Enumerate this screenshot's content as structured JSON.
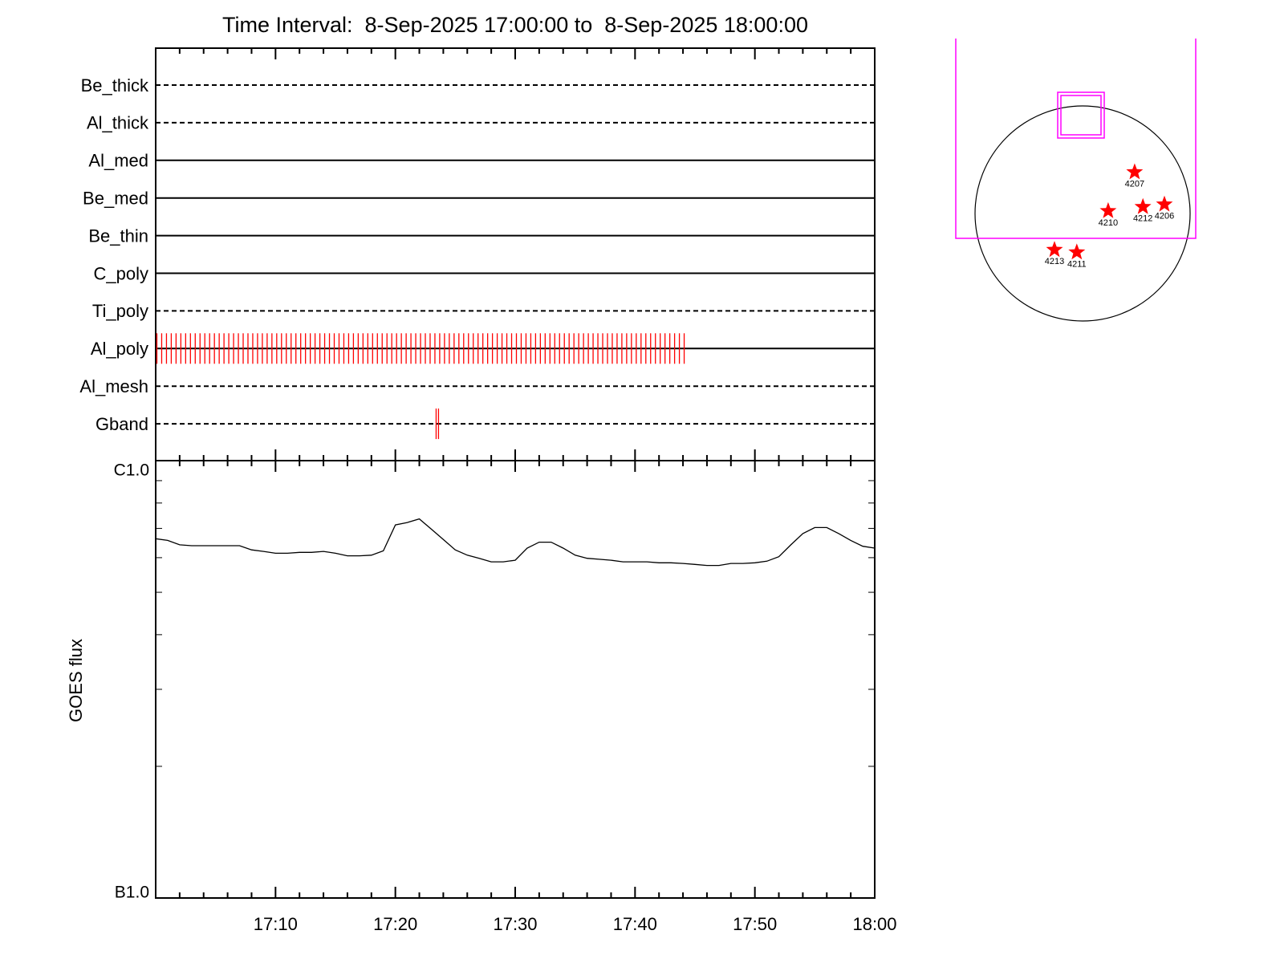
{
  "chart_data": [
    {
      "type": "timeline",
      "title": "Time Interval:  8-Sep-2025 17:00:00 to  8-Sep-2025 18:00:00",
      "categories": [
        "Be_thick",
        "Al_thick",
        "Al_med",
        "Be_med",
        "Be_thin",
        "C_poly",
        "Ti_poly",
        "Al_poly",
        "Al_mesh",
        "Gband"
      ],
      "line_styles": [
        "dashed",
        "dashed",
        "solid",
        "solid",
        "solid",
        "solid",
        "dashed",
        "solid",
        "dashed",
        "dashed"
      ],
      "color": "#ff0000",
      "exposures": [
        [],
        [],
        [],
        [],
        [],
        [],
        [],
        [
          0.1,
          0.5,
          0.9,
          1.3,
          1.7,
          2.1,
          2.5,
          2.9,
          3.3,
          3.7,
          4.1,
          4.5,
          4.9,
          5.3,
          5.7,
          6.1,
          6.5,
          6.9,
          7.3,
          7.7,
          8.1,
          8.5,
          8.9,
          9.3,
          9.7,
          10.1,
          10.5,
          10.9,
          11.3,
          11.7,
          12.1,
          12.5,
          12.9,
          13.3,
          13.7,
          14.1,
          14.5,
          14.9,
          15.3,
          15.7,
          16.1,
          16.5,
          16.9,
          17.3,
          17.7,
          18.1,
          18.5,
          18.9,
          19.3,
          19.7,
          20.1,
          20.5,
          20.9,
          21.3,
          21.7,
          22.1,
          22.5,
          22.9,
          23.3,
          23.7,
          24.1,
          24.5,
          24.9,
          25.3,
          25.7,
          26.1,
          26.5,
          26.9,
          27.3,
          27.7,
          28.1,
          28.5,
          28.9,
          29.3,
          29.7,
          30.1,
          30.5,
          30.9,
          31.3,
          31.7,
          32.1,
          32.5,
          32.9,
          33.3,
          33.7,
          34.1,
          34.5,
          34.9,
          35.3,
          35.7,
          36.1,
          36.5,
          36.9,
          37.3,
          37.7,
          38.1,
          38.5,
          38.9,
          39.3,
          39.7,
          40.1,
          40.5,
          40.9,
          41.3,
          41.7,
          42.1,
          42.5,
          42.9,
          43.3,
          43.7,
          44.1
        ],
        [],
        [
          23.4,
          23.6
        ]
      ]
    },
    {
      "type": "line",
      "ylabel": "GOES flux",
      "log_y": true,
      "color": "#000000",
      "xlim": [
        0,
        60
      ],
      "xticks": [
        {
          "value": 10,
          "label": "17:10"
        },
        {
          "value": 20,
          "label": "17:20"
        },
        {
          "value": 30,
          "label": "17:30"
        },
        {
          "value": 40,
          "label": "17:40"
        },
        {
          "value": 50,
          "label": "17:50"
        },
        {
          "value": 60,
          "label": "18:00"
        }
      ],
      "xminorticks": [
        2,
        4,
        6,
        8,
        12,
        14,
        16,
        18,
        22,
        24,
        26,
        28,
        32,
        34,
        36,
        38,
        42,
        44,
        46,
        48,
        52,
        54,
        56,
        58
      ],
      "ylim": [
        1e-07,
        1e-06
      ],
      "yticks": [
        {
          "value": 1e-07,
          "label": "B1.0"
        },
        {
          "value": 1e-06,
          "label": "C1.0"
        }
      ],
      "yminorticks": [
        2e-07,
        3e-07,
        4e-07,
        5e-07,
        6e-07,
        7e-07,
        8e-07,
        9e-07
      ],
      "x": [
        0,
        1,
        2,
        3,
        4,
        5,
        6,
        7,
        8,
        9,
        10,
        11,
        12,
        13,
        14,
        15,
        16,
        17,
        18,
        19,
        20,
        21,
        22,
        23,
        24,
        25,
        26,
        27,
        28,
        29,
        30,
        31,
        32,
        33,
        34,
        35,
        36,
        37,
        38,
        39,
        40,
        41,
        42,
        43,
        44,
        45,
        46,
        47,
        48,
        49,
        50,
        51,
        52,
        53,
        54,
        55,
        56,
        57,
        58,
        59,
        60
      ],
      "values": [
        6.63e-07,
        6.57e-07,
        6.42e-07,
        6.39e-07,
        6.39e-07,
        6.39e-07,
        6.39e-07,
        6.39e-07,
        6.25e-07,
        6.2e-07,
        6.14e-07,
        6.14e-07,
        6.17e-07,
        6.17e-07,
        6.2e-07,
        6.14e-07,
        6.06e-07,
        6.06e-07,
        6.08e-07,
        6.22e-07,
        7.13e-07,
        7.22e-07,
        7.36e-07,
        6.97e-07,
        6.6e-07,
        6.25e-07,
        6.08e-07,
        5.98e-07,
        5.87e-07,
        5.87e-07,
        5.92e-07,
        6.31e-07,
        6.51e-07,
        6.51e-07,
        6.31e-07,
        6.08e-07,
        5.98e-07,
        5.95e-07,
        5.92e-07,
        5.87e-07,
        5.87e-07,
        5.87e-07,
        5.84e-07,
        5.84e-07,
        5.82e-07,
        5.79e-07,
        5.76e-07,
        5.76e-07,
        5.82e-07,
        5.82e-07,
        5.84e-07,
        5.89e-07,
        6.03e-07,
        6.42e-07,
        6.81e-07,
        7.03e-07,
        7.03e-07,
        6.81e-07,
        6.57e-07,
        6.37e-07,
        6.31e-07
      ]
    },
    {
      "type": "scatter",
      "color": "#ff0000",
      "labels": [
        "4207",
        "4210",
        "4212",
        "4206",
        "4213",
        "4211"
      ],
      "x": [
        460,
        226,
        533,
        723,
        -248,
        -51
      ],
      "y": [
        365,
        22,
        58,
        80,
        -321,
        -343
      ]
    }
  ]
}
